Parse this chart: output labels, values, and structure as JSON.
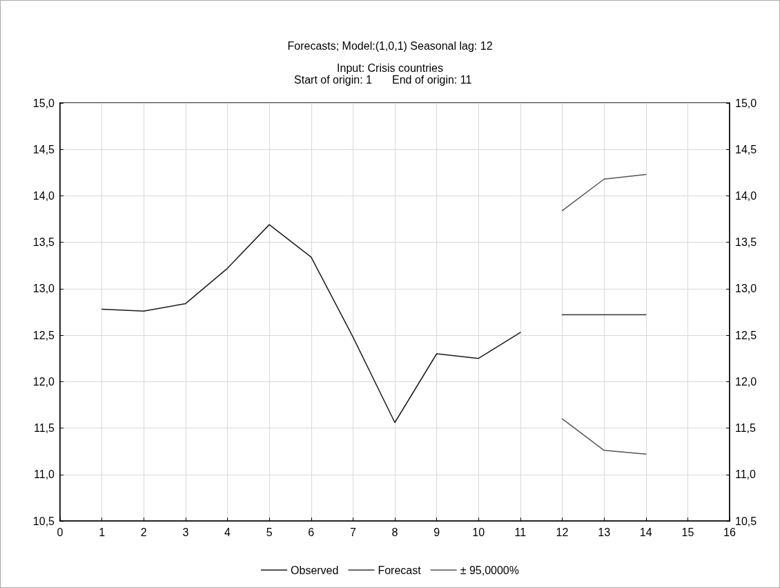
{
  "chart_data": {
    "type": "line",
    "title": "Forecasts; Model:(1,0,1) Seasonal lag: 12",
    "subtitle": "Input: Crisis countries",
    "annotations": [
      "Start of origin: 1",
      "End of origin: 11"
    ],
    "series": [
      {
        "name": "Observed",
        "color": "#1a1a1a",
        "x": [
          1,
          2,
          3,
          4,
          5,
          6,
          7,
          8,
          9,
          10,
          11
        ],
        "values": [
          12.78,
          12.76,
          12.84,
          13.22,
          13.69,
          13.34,
          12.48,
          11.56,
          12.3,
          12.25,
          12.53
        ]
      },
      {
        "name": "Forecast",
        "color": "#333333",
        "x": [
          12,
          13,
          14
        ],
        "values": [
          12.72,
          12.72,
          12.72
        ]
      },
      {
        "name": "± 95,0000%",
        "color": "#555555",
        "x": [
          12,
          13,
          14
        ],
        "values": [
          13.84,
          14.18,
          14.23
        ]
      },
      {
        "color": "#555555",
        "x": [
          12,
          13,
          14
        ],
        "values": [
          11.6,
          11.26,
          11.22
        ]
      }
    ],
    "xlim": [
      0,
      16
    ],
    "xticks": [
      0,
      1,
      2,
      3,
      4,
      5,
      6,
      7,
      8,
      9,
      10,
      11,
      12,
      13,
      14,
      15,
      16
    ],
    "ylim": [
      10.5,
      15
    ],
    "yticks": [
      {
        "value": 10.5,
        "label": "10,5"
      },
      {
        "value": 11,
        "label": "11,0"
      },
      {
        "value": 11.5,
        "label": "11,5"
      },
      {
        "value": 12,
        "label": "12,0"
      },
      {
        "value": 12.5,
        "label": "12,5"
      },
      {
        "value": 13,
        "label": "13,0"
      },
      {
        "value": 13.5,
        "label": "13,5"
      },
      {
        "value": 14,
        "label": "14,0"
      },
      {
        "value": 14.5,
        "label": "14,5"
      },
      {
        "value": 15,
        "label": "15,0"
      }
    ],
    "y2lim": [
      10.5,
      15
    ],
    "y2ticks": [
      {
        "value": 10.5,
        "label": "10,5"
      },
      {
        "value": 11,
        "label": "11,0"
      },
      {
        "value": 11.5,
        "label": "11,5"
      },
      {
        "value": 12,
        "label": "12,0"
      },
      {
        "value": 12.5,
        "label": "12,5"
      },
      {
        "value": 13,
        "label": "13,0"
      },
      {
        "value": 13.5,
        "label": "13,5"
      },
      {
        "value": 14,
        "label": "14,0"
      },
      {
        "value": 14.5,
        "label": "14,5"
      },
      {
        "value": 15,
        "label": "15,0"
      }
    ],
    "grid": true,
    "legend": "bottom",
    "marker": "none",
    "line_style": "solid"
  }
}
